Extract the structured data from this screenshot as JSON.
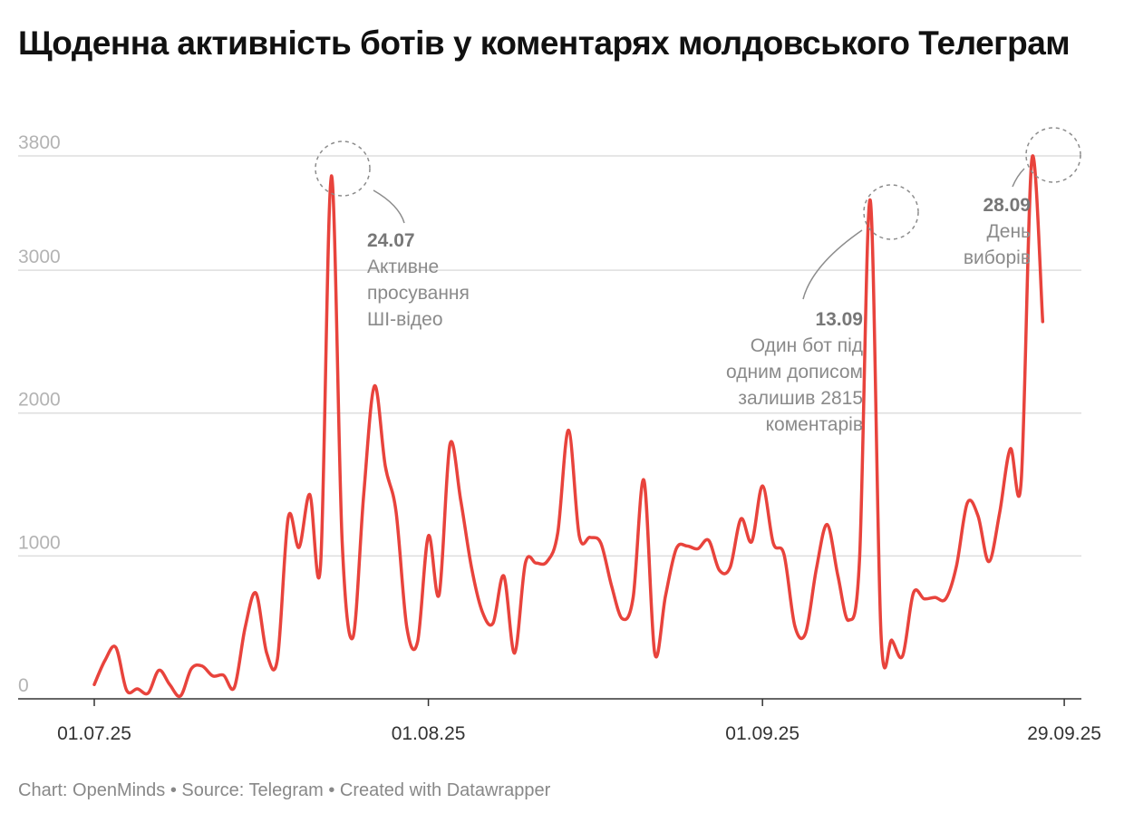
{
  "title": "Щоденна активність ботів у коментарях молдовського Телеграм",
  "footer": "Chart: OpenMinds • Source: Telegram • Created with Datawrapper",
  "chart_data": {
    "type": "line",
    "title": "Щоденна активність ботів у коментарях молдовського Телеграм",
    "xlabel": "",
    "ylabel": "",
    "x_start": "01.07.25",
    "x_end": "29.09.25",
    "x_ticks": [
      "01.07.25",
      "01.08.25",
      "01.09.25",
      "29.09.25"
    ],
    "y_ticks": [
      0,
      1000,
      2000,
      3000,
      3800
    ],
    "ylim": [
      0,
      3800
    ],
    "grid": true,
    "line_color": "#e8433c",
    "values": [
      100,
      270,
      360,
      60,
      70,
      40,
      200,
      100,
      20,
      210,
      230,
      160,
      165,
      80,
      500,
      740,
      320,
      280,
      1270,
      1060,
      1430,
      940,
      3660,
      1100,
      430,
      1430,
      2190,
      1630,
      1310,
      500,
      400,
      1140,
      730,
      1780,
      1390,
      920,
      610,
      530,
      860,
      320,
      950,
      950,
      960,
      1160,
      1880,
      1140,
      1130,
      1090,
      790,
      560,
      710,
      1530,
      320,
      720,
      1050,
      1070,
      1050,
      1110,
      900,
      920,
      1260,
      1100,
      1490,
      1090,
      1010,
      510,
      460,
      910,
      1220,
      860,
      550,
      970,
      3490,
      450,
      410,
      300,
      740,
      700,
      710,
      700,
      930,
      1370,
      1280,
      960,
      1300,
      1750,
      1520,
      3780,
      2640
    ],
    "annotations": [
      {
        "date": "24.07",
        "lines": [
          "Активне",
          "просування",
          "ШІ-відео"
        ]
      },
      {
        "date": "13.09",
        "lines": [
          "Один бот під",
          "одним дописом",
          "залишив 2815",
          "коментарів"
        ]
      },
      {
        "date": "28.09",
        "lines": [
          "День",
          "виборів"
        ]
      }
    ]
  }
}
